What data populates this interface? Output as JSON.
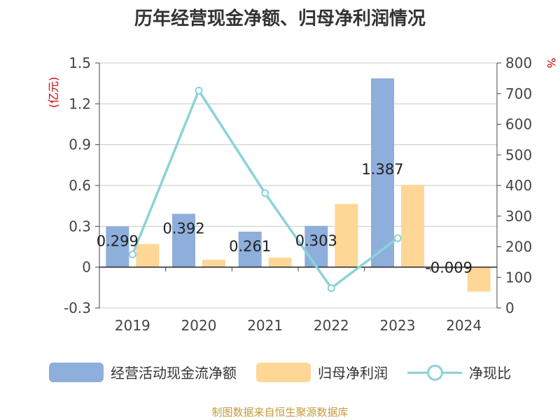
{
  "title": "历年经营现金净额、归母净利润情况",
  "footer": "制图数据来自恒生聚源数据库",
  "colors": {
    "cash_flow": "#8eaedb",
    "net_profit": "#fed797",
    "ratio": "#8ad3da",
    "axis_unit": "#cc0000"
  },
  "chart_data": {
    "type": "bar",
    "categories": [
      "2019",
      "2020",
      "2021",
      "2022",
      "2023",
      "2024"
    ],
    "left_axis": {
      "unit_label": "(亿元)",
      "ylim": [
        -0.3,
        1.5
      ],
      "ticks": [
        "-0.3",
        "0",
        "0.3",
        "0.6",
        "0.9",
        "1.2",
        "1.5"
      ]
    },
    "right_axis": {
      "unit_label": "%",
      "ylim": [
        0,
        800
      ],
      "ticks": [
        "0",
        "100",
        "200",
        "300",
        "400",
        "500",
        "600",
        "700",
        "800"
      ]
    },
    "series": [
      {
        "name": "经营活动现金流净额",
        "type": "bar",
        "axis": "left",
        "values": [
          0.299,
          0.392,
          0.261,
          0.303,
          1.387,
          -0.009
        ],
        "labels": [
          "0.299",
          "0.392",
          "0.261",
          "0.303",
          "1.387",
          "-0.009"
        ]
      },
      {
        "name": "归母净利润",
        "type": "bar",
        "axis": "left",
        "values": [
          0.17,
          0.055,
          0.07,
          0.465,
          0.605,
          -0.18
        ]
      },
      {
        "name": "净现比",
        "type": "line",
        "axis": "right",
        "values": [
          175,
          710,
          375,
          65,
          228,
          null
        ]
      }
    ],
    "grid": true,
    "legend_position": "bottom"
  }
}
